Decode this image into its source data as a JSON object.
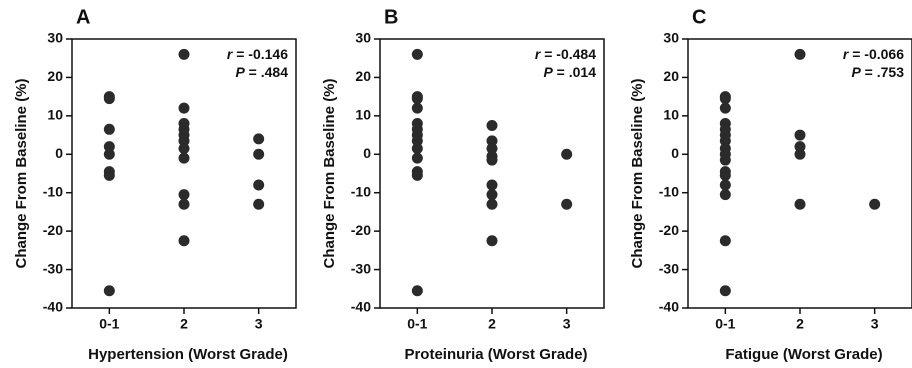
{
  "chart_data": [
    {
      "type": "strip",
      "panel": "A",
      "ylabel": "Change From Baseline (%)",
      "xlabel": "Hypertension (Worst Grade)",
      "categories": [
        "0-1",
        "2",
        "3"
      ],
      "x": [
        "0-1",
        "0-1",
        "0-1",
        "0-1",
        "0-1",
        "0-1",
        "0-1",
        "0-1",
        "2",
        "2",
        "2",
        "2",
        "2",
        "2",
        "2",
        "2",
        "2",
        "2",
        "2",
        "3",
        "3",
        "3",
        "3"
      ],
      "values": [
        15,
        14.5,
        6.5,
        2,
        0,
        -4.5,
        -5.5,
        -35.5,
        26,
        12,
        8,
        6.5,
        5,
        3.5,
        1.5,
        -1,
        -10.5,
        -13,
        -22.5,
        4,
        0,
        -8,
        -13
      ],
      "color": "#2b2b2b",
      "ylim": [
        -40,
        30
      ],
      "yticks": [
        -40,
        -30,
        -20,
        -10,
        0,
        10,
        20,
        30
      ],
      "annotations": [
        {
          "symbol": "r",
          "text": "= -0.146"
        },
        {
          "symbol": "P",
          "text": "= .484"
        }
      ]
    },
    {
      "type": "strip",
      "panel": "B",
      "ylabel": "Change From Baseline (%)",
      "xlabel": "Proteinuria (Worst Grade)",
      "categories": [
        "0-1",
        "2",
        "3"
      ],
      "x": [
        "0-1",
        "0-1",
        "0-1",
        "0-1",
        "0-1",
        "0-1",
        "0-1",
        "0-1",
        "0-1",
        "0-1",
        "0-1",
        "0-1",
        "0-1",
        "2",
        "2",
        "2",
        "2",
        "2",
        "2",
        "2",
        "2",
        "2",
        "3",
        "3"
      ],
      "values": [
        26,
        15,
        14.5,
        12,
        8,
        6.5,
        5,
        3.5,
        1.5,
        -1,
        -4.5,
        -5.5,
        -35.5,
        7.5,
        3.5,
        1.5,
        -0.5,
        -1.5,
        -8,
        -10.5,
        -13,
        -22.5,
        0,
        -13
      ],
      "color": "#2b2b2b",
      "ylim": [
        -40,
        30
      ],
      "yticks": [
        -40,
        -30,
        -20,
        -10,
        0,
        10,
        20,
        30
      ],
      "annotations": [
        {
          "symbol": "r",
          "text": "= -0.484"
        },
        {
          "symbol": "P",
          "text": "= .014"
        }
      ]
    },
    {
      "type": "strip",
      "panel": "C",
      "ylabel": "Change From Baseline (%)",
      "xlabel": "Fatigue (Worst Grade)",
      "categories": [
        "0-1",
        "2",
        "3"
      ],
      "x": [
        "0-1",
        "0-1",
        "0-1",
        "0-1",
        "0-1",
        "0-1",
        "0-1",
        "0-1",
        "0-1",
        "0-1",
        "0-1",
        "0-1",
        "0-1",
        "0-1",
        "0-1",
        "0-1",
        "2",
        "2",
        "2",
        "2",
        "2",
        "3"
      ],
      "values": [
        15,
        14.5,
        12,
        8,
        6.5,
        5,
        3.5,
        1.5,
        0,
        -1.5,
        -4.5,
        -5.5,
        -8,
        -10.5,
        -22.5,
        -35.5,
        26,
        5,
        2,
        0,
        -13,
        -13
      ],
      "color": "#2b2b2b",
      "ylim": [
        -40,
        30
      ],
      "yticks": [
        -40,
        -30,
        -20,
        -10,
        0,
        10,
        20,
        30
      ],
      "annotations": [
        {
          "symbol": "r",
          "text": "= -0.066"
        },
        {
          "symbol": "P",
          "text": "= .753"
        }
      ]
    }
  ]
}
